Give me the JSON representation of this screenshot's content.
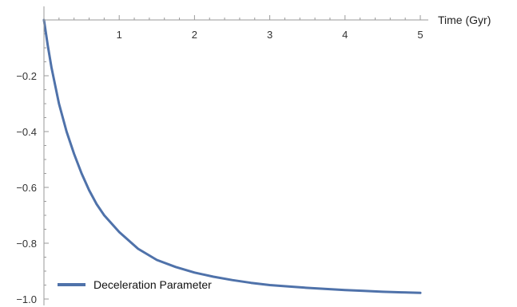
{
  "chart_data": {
    "type": "line",
    "title": "",
    "xlabel": "Time (Gyr)",
    "ylabel": "",
    "xlim": [
      0,
      5
    ],
    "ylim": [
      -1.0,
      0
    ],
    "x_ticks": [
      "1",
      "2",
      "3",
      "4",
      "5"
    ],
    "y_ticks": [
      "-0.2",
      "-0.4",
      "-0.6",
      "-0.8",
      "-1.0"
    ],
    "x_tick_values": [
      1,
      2,
      3,
      4,
      5
    ],
    "y_tick_values": [
      -0.2,
      -0.4,
      -0.6,
      -0.8,
      -1.0
    ],
    "grid": false,
    "legend_position": "bottom-left",
    "series": [
      {
        "name": "Deceleration Parameter",
        "color": "#4f72aa",
        "x": [
          0,
          0.05,
          0.1,
          0.2,
          0.3,
          0.4,
          0.5,
          0.6,
          0.7,
          0.8,
          0.9,
          1.0,
          1.25,
          1.5,
          1.75,
          2.0,
          2.25,
          2.5,
          2.75,
          3.0,
          3.25,
          3.5,
          3.75,
          4.0,
          4.25,
          4.5,
          4.75,
          5.0
        ],
        "values": [
          0,
          -0.09,
          -0.17,
          -0.3,
          -0.4,
          -0.48,
          -0.55,
          -0.61,
          -0.66,
          -0.7,
          -0.73,
          -0.76,
          -0.82,
          -0.86,
          -0.885,
          -0.905,
          -0.92,
          -0.932,
          -0.942,
          -0.95,
          -0.955,
          -0.96,
          -0.964,
          -0.968,
          -0.971,
          -0.974,
          -0.976,
          -0.978
        ]
      }
    ]
  }
}
